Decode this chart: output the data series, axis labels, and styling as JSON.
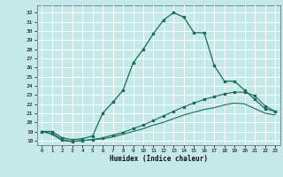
{
  "title": "",
  "xlabel": "Humidex (Indice chaleur)",
  "bg_color": "#c5e8e8",
  "grid_color": "#ffffff",
  "line_color": "#1a6b5a",
  "xlim": [
    -0.5,
    23.5
  ],
  "ylim": [
    17.5,
    32.8
  ],
  "xticks": [
    0,
    1,
    2,
    3,
    4,
    5,
    6,
    7,
    8,
    9,
    10,
    11,
    12,
    13,
    14,
    15,
    16,
    17,
    18,
    19,
    20,
    21,
    22,
    23
  ],
  "yticks": [
    18,
    19,
    20,
    21,
    22,
    23,
    24,
    25,
    26,
    27,
    28,
    29,
    30,
    31,
    32
  ],
  "curve1_x": [
    0,
    1,
    2,
    3,
    4,
    5,
    6,
    7,
    8,
    9,
    10,
    11,
    12,
    13,
    14,
    15,
    16,
    17,
    18,
    19,
    20,
    21,
    22,
    23
  ],
  "curve1_y": [
    19.0,
    19.0,
    18.3,
    18.1,
    18.2,
    18.5,
    21.0,
    22.2,
    23.5,
    26.5,
    28.0,
    29.7,
    31.2,
    32.0,
    31.5,
    29.8,
    29.8,
    26.2,
    24.5,
    24.5,
    23.5,
    22.5,
    21.5,
    21.2
  ],
  "curve2_x": [
    0,
    1,
    2,
    3,
    4,
    5,
    6,
    7,
    8,
    9,
    10,
    11,
    12,
    13,
    14,
    15,
    16,
    17,
    18,
    19,
    20,
    21,
    22,
    23
  ],
  "curve2_y": [
    19.0,
    18.8,
    18.1,
    17.9,
    18.0,
    18.1,
    18.3,
    18.6,
    18.9,
    19.3,
    19.7,
    20.2,
    20.7,
    21.2,
    21.7,
    22.1,
    22.5,
    22.8,
    23.1,
    23.3,
    23.3,
    22.9,
    21.8,
    21.2
  ],
  "curve3_x": [
    0,
    1,
    2,
    3,
    4,
    5,
    6,
    7,
    8,
    9,
    10,
    11,
    12,
    13,
    14,
    15,
    16,
    17,
    18,
    19,
    20,
    21,
    22,
    23
  ],
  "curve3_y": [
    19.0,
    18.7,
    18.0,
    17.9,
    18.0,
    18.1,
    18.2,
    18.4,
    18.7,
    19.0,
    19.3,
    19.7,
    20.0,
    20.4,
    20.8,
    21.1,
    21.4,
    21.6,
    21.9,
    22.1,
    22.0,
    21.5,
    21.0,
    20.8
  ]
}
